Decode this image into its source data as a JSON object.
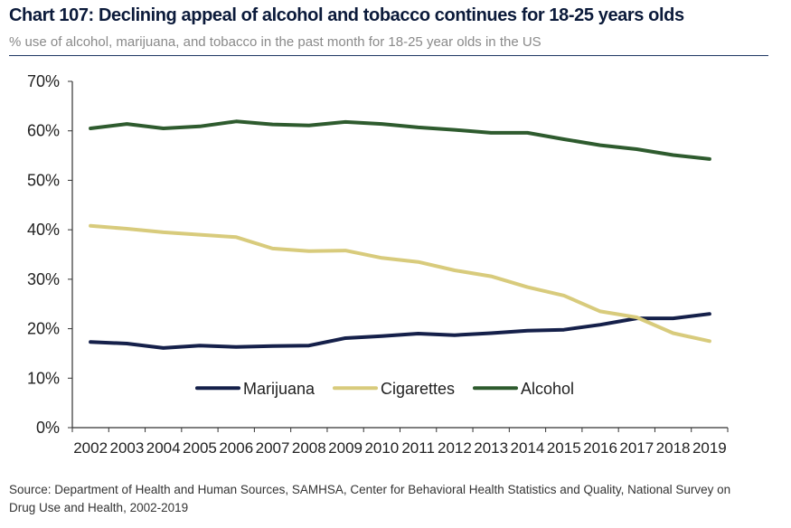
{
  "header": {
    "title": "Chart 107: Declining appeal of alcohol and tobacco continues for 18-25 years olds",
    "subtitle": "% use of alcohol, marijuana, and tobacco in the past month for 18-25 year olds in the US"
  },
  "footer": {
    "source": "Source: Department of Health and Human Sources, SAMHSA, Center for Behavioral Health Statistics and Quality, National Survey on Drug Use and Health, 2002-2019"
  },
  "chart_data": {
    "type": "line",
    "x": [
      "2002",
      "2003",
      "2004",
      "2005",
      "2006",
      "2007",
      "2008",
      "2009",
      "2010",
      "2011",
      "2012",
      "2013",
      "2014",
      "2015",
      "2016",
      "2017",
      "2018",
      "2019"
    ],
    "y_ticks": [
      "0%",
      "10%",
      "20%",
      "30%",
      "40%",
      "50%",
      "60%",
      "70%"
    ],
    "ylim": [
      0,
      70
    ],
    "grid": false,
    "legend_position": "bottom-center",
    "series": [
      {
        "name": "Marijuana",
        "color": "#15204a",
        "values": [
          17.3,
          17.0,
          16.1,
          16.6,
          16.3,
          16.5,
          16.6,
          18.1,
          18.5,
          19.0,
          18.7,
          19.1,
          19.6,
          19.8,
          20.8,
          22.1,
          22.1,
          23.0
        ]
      },
      {
        "name": "Cigarettes",
        "color": "#d8cb7c",
        "values": [
          40.8,
          40.2,
          39.5,
          39.0,
          38.5,
          36.2,
          35.7,
          35.8,
          34.3,
          33.5,
          31.8,
          30.6,
          28.4,
          26.7,
          23.5,
          22.3,
          19.1,
          17.5
        ]
      },
      {
        "name": "Alcohol",
        "color": "#2e5b2e",
        "values": [
          60.5,
          61.4,
          60.5,
          60.9,
          61.9,
          61.3,
          61.1,
          61.8,
          61.4,
          60.7,
          60.2,
          59.6,
          59.6,
          58.3,
          57.1,
          56.3,
          55.1,
          54.3
        ]
      }
    ]
  }
}
